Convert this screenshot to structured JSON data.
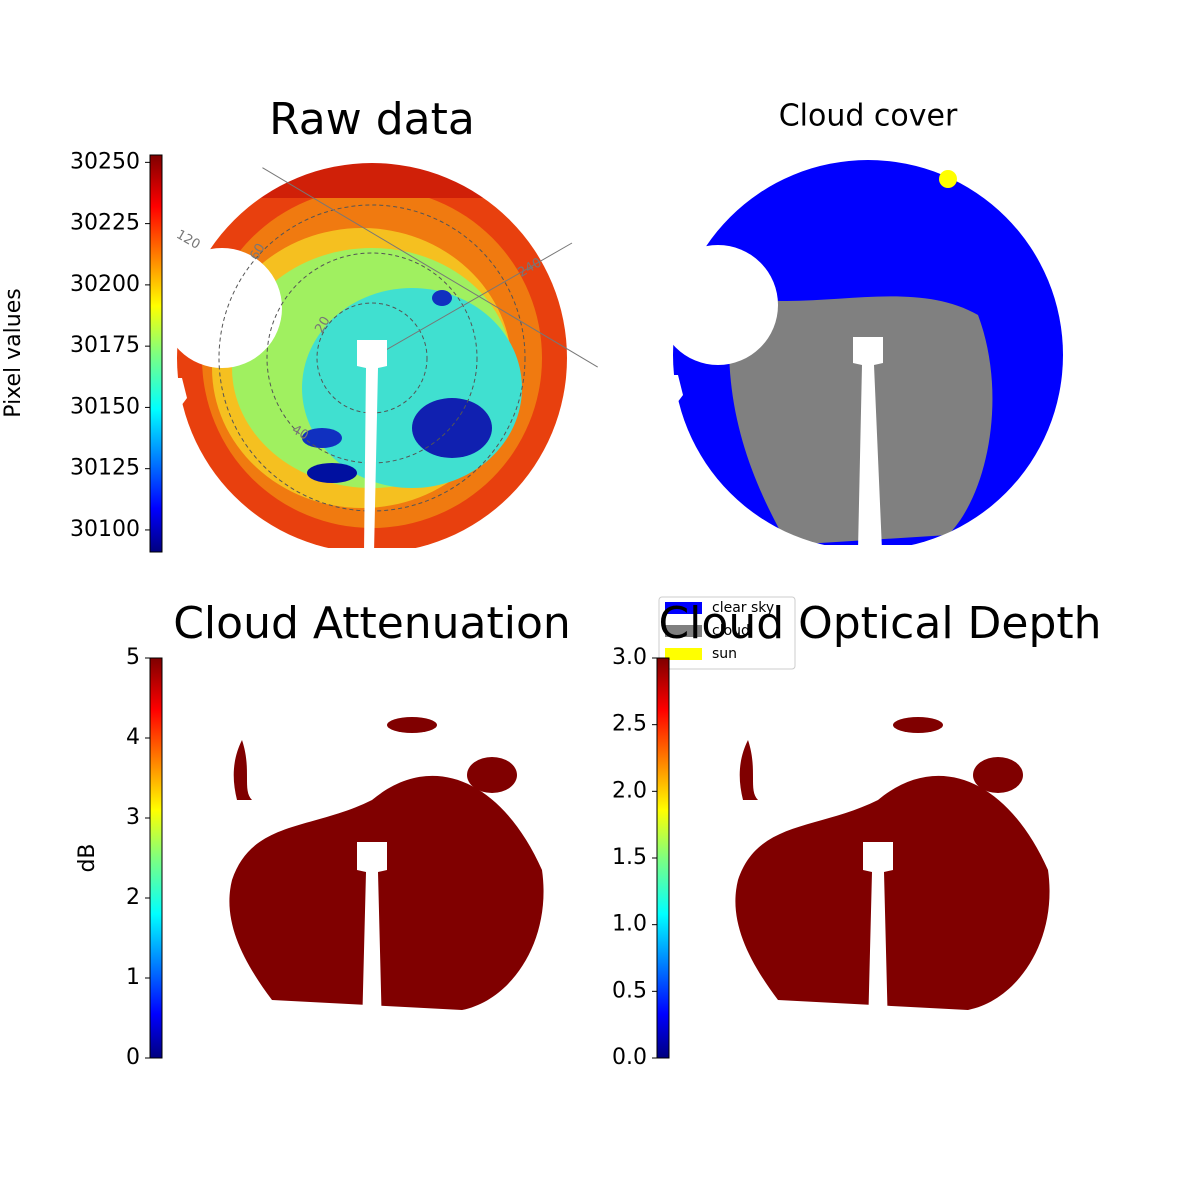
{
  "chart_data": [
    {
      "type": "image",
      "title": "Raw data",
      "ylabel": "Pixel values",
      "ylim": [
        30091,
        30253
      ],
      "yticks": [
        30100,
        30125,
        30150,
        30175,
        30200,
        30225,
        30250
      ],
      "annotations": [
        "120",
        "60",
        "20",
        "40",
        "240"
      ]
    },
    {
      "type": "image",
      "title": "Cloud cover",
      "series": [
        {
          "name": "clear sky",
          "color": "#0000ff"
        },
        {
          "name": "cloud",
          "color": "#808080"
        },
        {
          "name": "sun",
          "color": "#ffff00"
        }
      ]
    },
    {
      "type": "image",
      "title": "Cloud Attenuation",
      "ylabel": "dB",
      "ylim": [
        0,
        5
      ],
      "yticks": [
        0,
        1,
        2,
        3,
        4,
        5
      ]
    },
    {
      "type": "image",
      "title": "Cloud Optical Depth",
      "ylim": [
        0,
        3
      ],
      "yticks": [
        {
          "value": 0,
          "label": "0.0"
        },
        {
          "value": 0.5,
          "label": "0.5"
        },
        {
          "value": 1,
          "label": "1.0"
        },
        {
          "value": 1.5,
          "label": "1.5"
        },
        {
          "value": 2,
          "label": "2.0"
        },
        {
          "value": 2.5,
          "label": "2.5"
        },
        {
          "value": 3,
          "label": "3.0"
        }
      ]
    }
  ]
}
